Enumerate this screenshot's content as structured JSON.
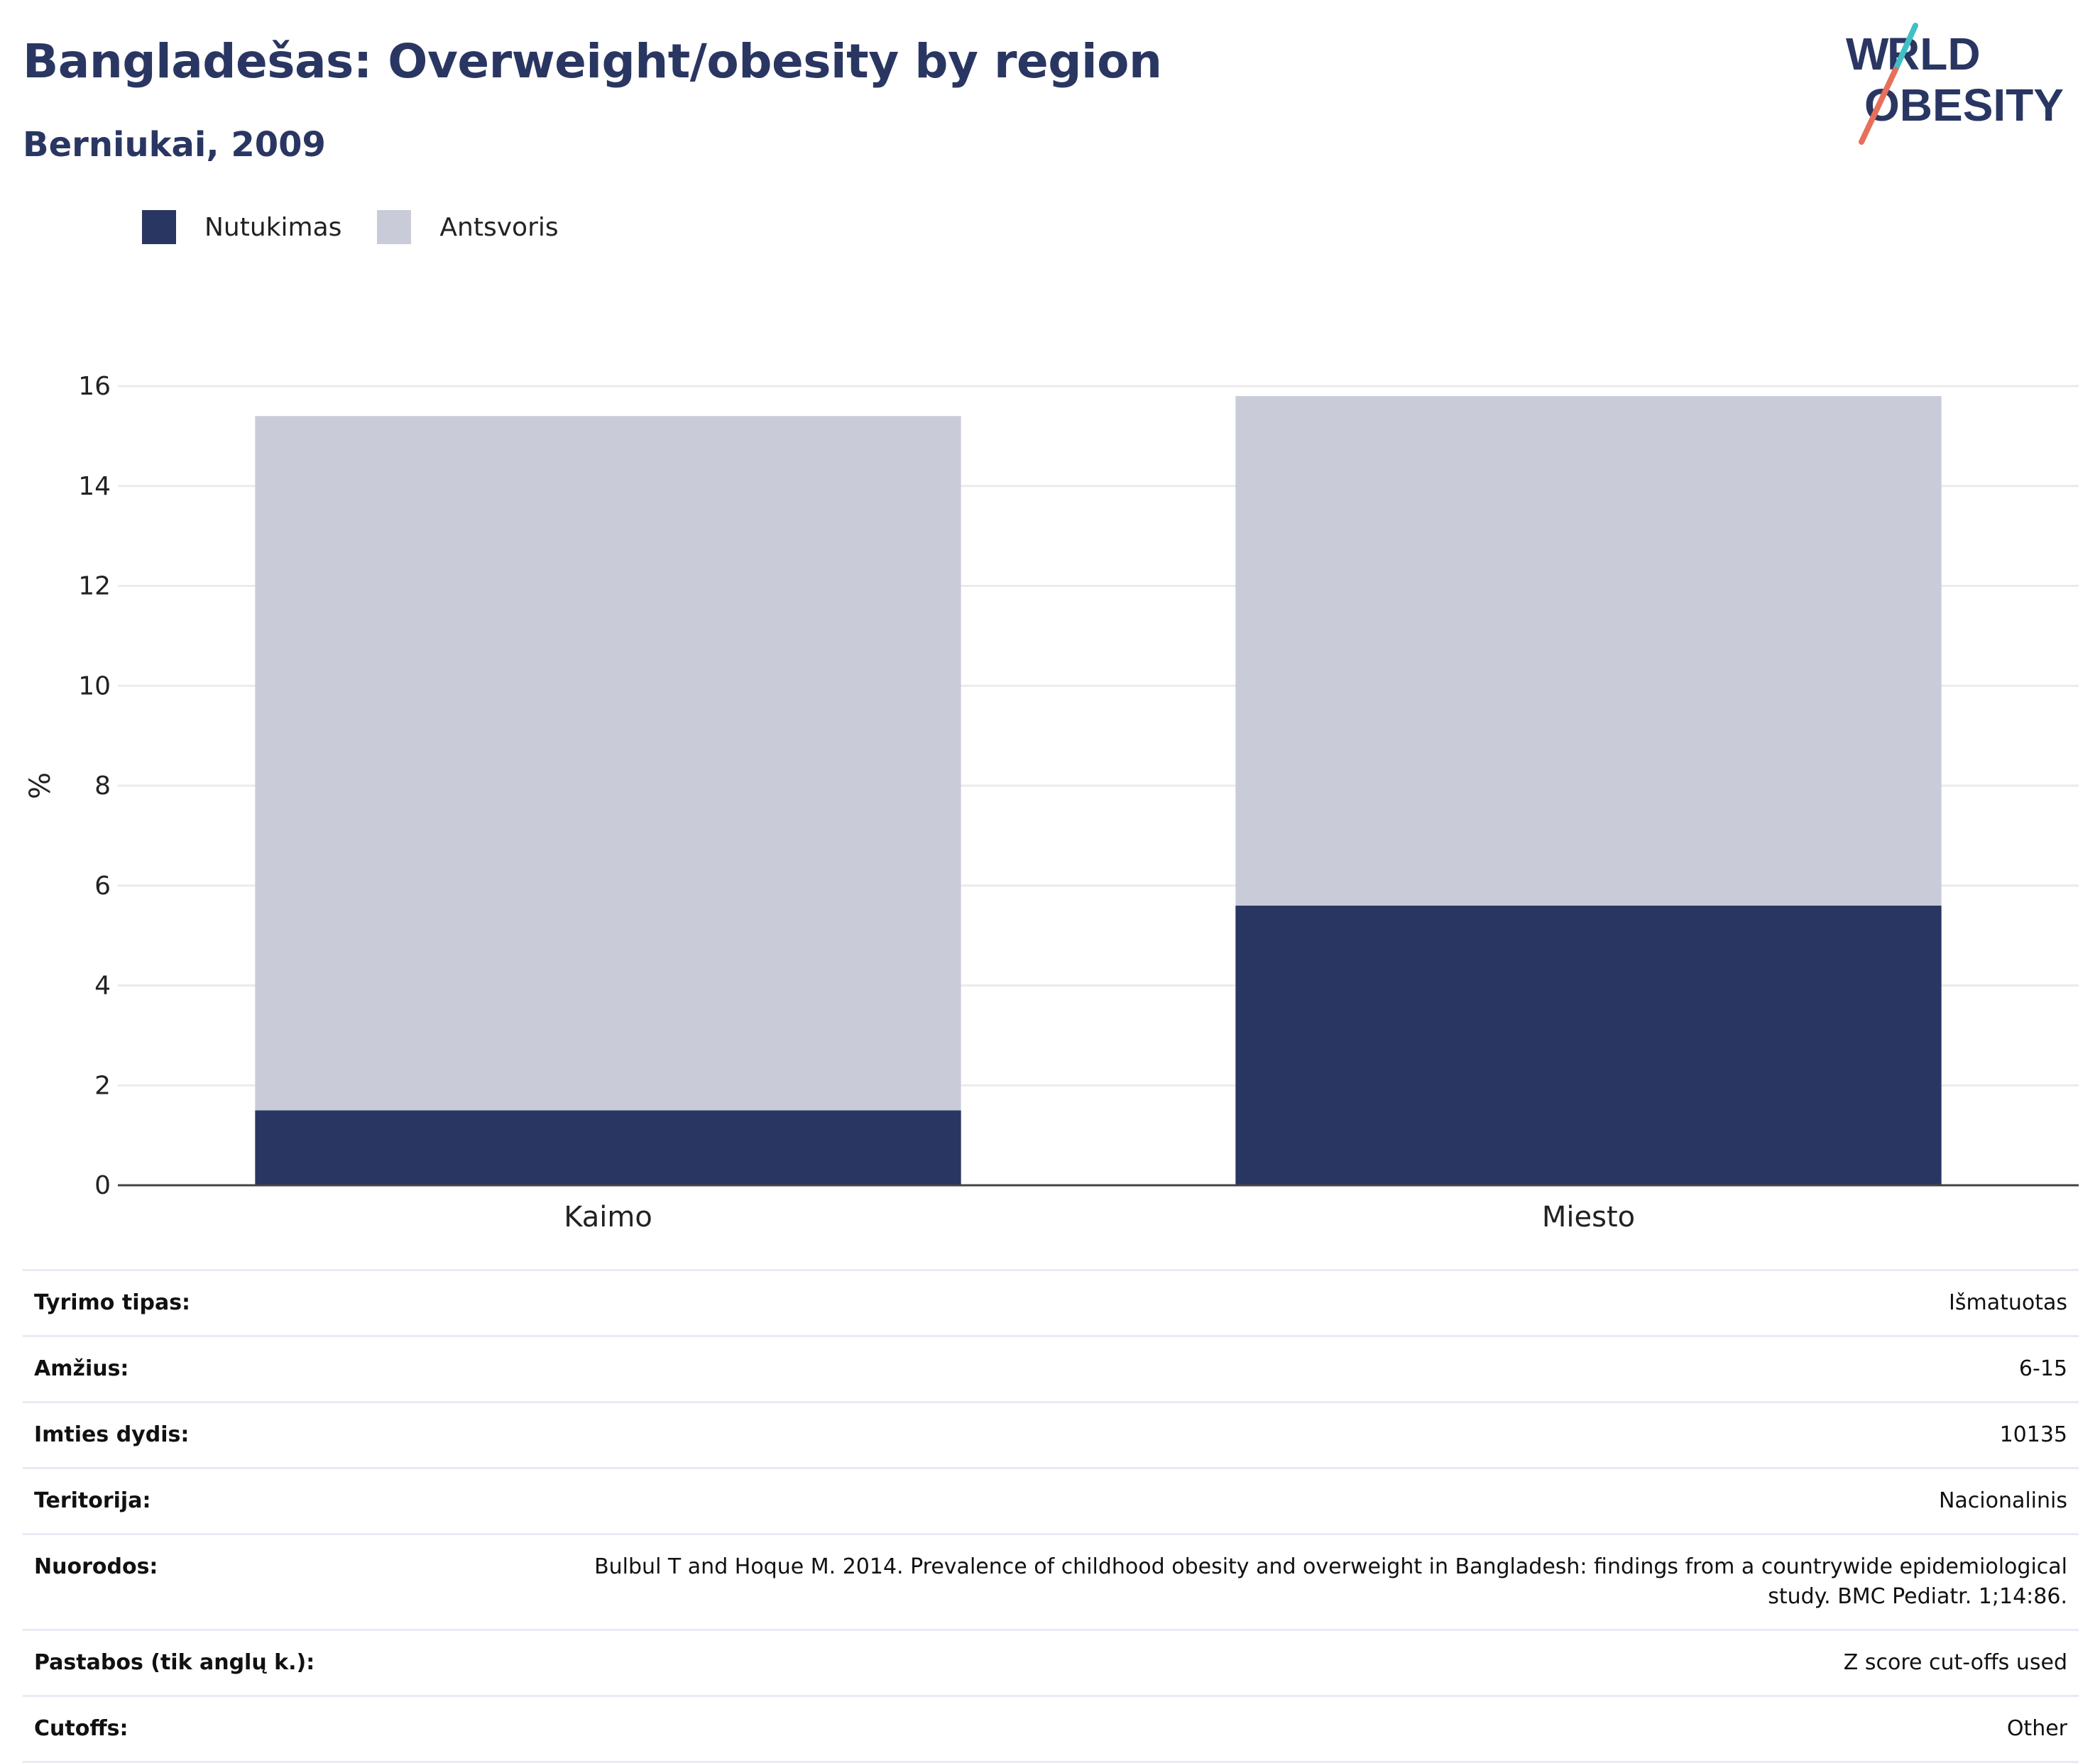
{
  "header": {
    "title": "Bangladešas: Overweight/obesity by region",
    "subtitle": "Berniukai, 2009"
  },
  "logo": {
    "line1": "WORLD",
    "line2": "OBESITY"
  },
  "legend": [
    {
      "label": "Nutukimas",
      "color": "#2a3662"
    },
    {
      "label": "Antsvoris",
      "color": "#c9ccd8"
    }
  ],
  "chart_data": {
    "type": "bar",
    "stacked": true,
    "categories": [
      "Kaimo",
      "Miesto"
    ],
    "series": [
      {
        "name": "Nutukimas",
        "values": [
          1.5,
          5.6
        ],
        "color": "#2a3662"
      },
      {
        "name": "Antsvoris",
        "values": [
          13.9,
          10.2
        ],
        "color": "#c9ccd8"
      }
    ],
    "ylabel": "%",
    "ylim": [
      0,
      16
    ],
    "yticks": [
      0,
      2,
      4,
      6,
      8,
      10,
      12,
      14,
      16
    ],
    "grid": true,
    "legend_position": "top-left"
  },
  "info": [
    {
      "key": "Tyrimo tipas:",
      "value": "Išmatuotas"
    },
    {
      "key": "Amžius:",
      "value": "6-15"
    },
    {
      "key": "Imties dydis:",
      "value": "10135"
    },
    {
      "key": "Teritorija:",
      "value": "Nacionalinis"
    },
    {
      "key": "Nuorodos:",
      "value": "Bulbul T and Hoque M. 2014. Prevalence of childhood obesity and overweight in Bangladesh: findings from a countrywide epidemiological study. BMC Pediatr. 1;14:86."
    },
    {
      "key": "Pastabos (tik anglų k.):",
      "value": "Z score cut-offs used"
    },
    {
      "key": "Cutoffs:",
      "value": "Other"
    }
  ]
}
